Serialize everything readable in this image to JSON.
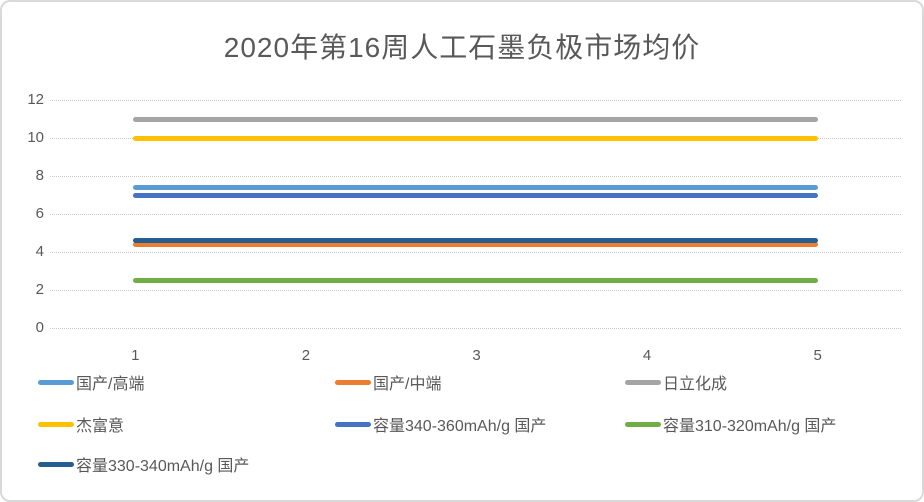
{
  "chart_data": {
    "type": "line",
    "title": "2020年第16周人工石墨负极市场均价",
    "x": [
      1,
      2,
      3,
      4,
      5
    ],
    "categories": [
      "1",
      "2",
      "3",
      "4",
      "5"
    ],
    "series": [
      {
        "name": "国产/高端",
        "color": "#5B9BD5",
        "values": [
          7.4,
          7.4,
          7.4,
          7.4,
          7.4
        ]
      },
      {
        "name": "国产/中端",
        "color": "#ED7D31",
        "values": [
          4.4,
          4.4,
          4.4,
          4.4,
          4.4
        ]
      },
      {
        "name": "日立化成",
        "color": "#A5A5A5",
        "values": [
          11,
          11,
          11,
          11,
          11
        ]
      },
      {
        "name": "杰富意",
        "color": "#FFC000",
        "values": [
          10,
          10,
          10,
          10,
          10
        ]
      },
      {
        "name": "容量340-360mAh/g 国产",
        "color": "#4472C4",
        "values": [
          7,
          7,
          7,
          7,
          7
        ]
      },
      {
        "name": "容量310-320mAh/g 国产",
        "color": "#70AD47",
        "values": [
          2.5,
          2.5,
          2.5,
          2.5,
          2.5
        ]
      },
      {
        "name": "容量330-340mAh/g 国产",
        "color": "#255E91",
        "values": [
          4.6,
          4.6,
          4.6,
          4.6,
          4.6
        ]
      }
    ],
    "ylim": [
      0,
      12
    ],
    "yticks": [
      0,
      2,
      4,
      6,
      8,
      10,
      12
    ],
    "grid": true,
    "legend_position": "bottom",
    "colors": {
      "title_text": "#595959",
      "axis_text": "#595959",
      "gridline": "#d9d9d9",
      "card_border": "#d9d9d9",
      "background": "#ffffff"
    }
  }
}
